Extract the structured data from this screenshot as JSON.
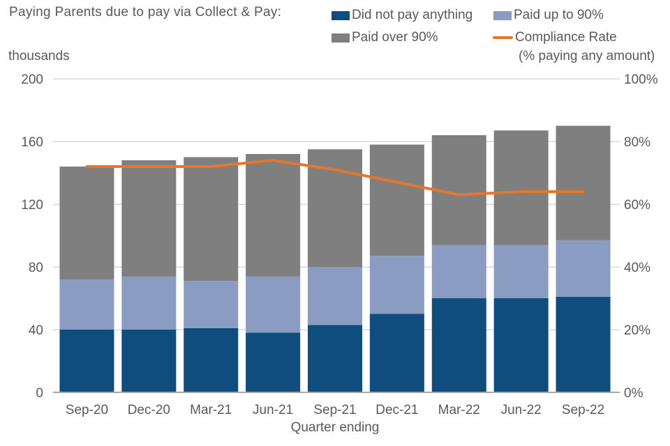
{
  "chart_data": {
    "type": "bar",
    "subtype": "stacked-column-with-line-overlay",
    "title": "Paying Parents due to pay via Collect & Pay:",
    "categories": [
      "Sep-20",
      "Dec-20",
      "Mar-21",
      "Jun-21",
      "Sep-21",
      "Dec-21",
      "Mar-22",
      "Jun-22",
      "Sep-22"
    ],
    "series": [
      {
        "name": "Did not pay anything",
        "chart": "bar",
        "axis": "left",
        "color": "#0e4d7d",
        "values": [
          40,
          40,
          41,
          38,
          43,
          50,
          60,
          60,
          61
        ]
      },
      {
        "name": "Paid up to 90%",
        "chart": "bar",
        "axis": "left",
        "color": "#8b9cc3",
        "values": [
          32,
          34,
          30,
          36,
          37,
          37,
          34,
          34,
          36
        ]
      },
      {
        "name": "Paid over 90%",
        "chart": "bar",
        "axis": "left",
        "color": "#7f7f7f",
        "values": [
          72,
          74,
          79,
          78,
          75,
          71,
          70,
          73,
          73
        ]
      },
      {
        "name": "Compliance Rate",
        "subtitle": "(% paying any amount)",
        "chart": "line",
        "axis": "right",
        "color": "#e5762e",
        "values": [
          72,
          72,
          72,
          74,
          71,
          67,
          63,
          64,
          64
        ]
      }
    ],
    "stacked_totals": [
      144,
      148,
      150,
      152,
      155,
      158,
      164,
      167,
      170
    ],
    "left_axis": {
      "label": "thousands",
      "min": 0,
      "max": 200,
      "ticks": [
        0,
        40,
        80,
        120,
        160,
        200
      ]
    },
    "right_axis": {
      "min": 0,
      "max": 100,
      "ticks": [
        0,
        20,
        40,
        60,
        80,
        100
      ],
      "suffix": "%"
    },
    "xlabel": "Quarter ending",
    "grid": true,
    "legend_position": "top-right",
    "colors": {
      "grid": "#d9d9d9",
      "axis_line": "#a6a6a6",
      "text": "#595959",
      "background": "#ffffff"
    }
  }
}
